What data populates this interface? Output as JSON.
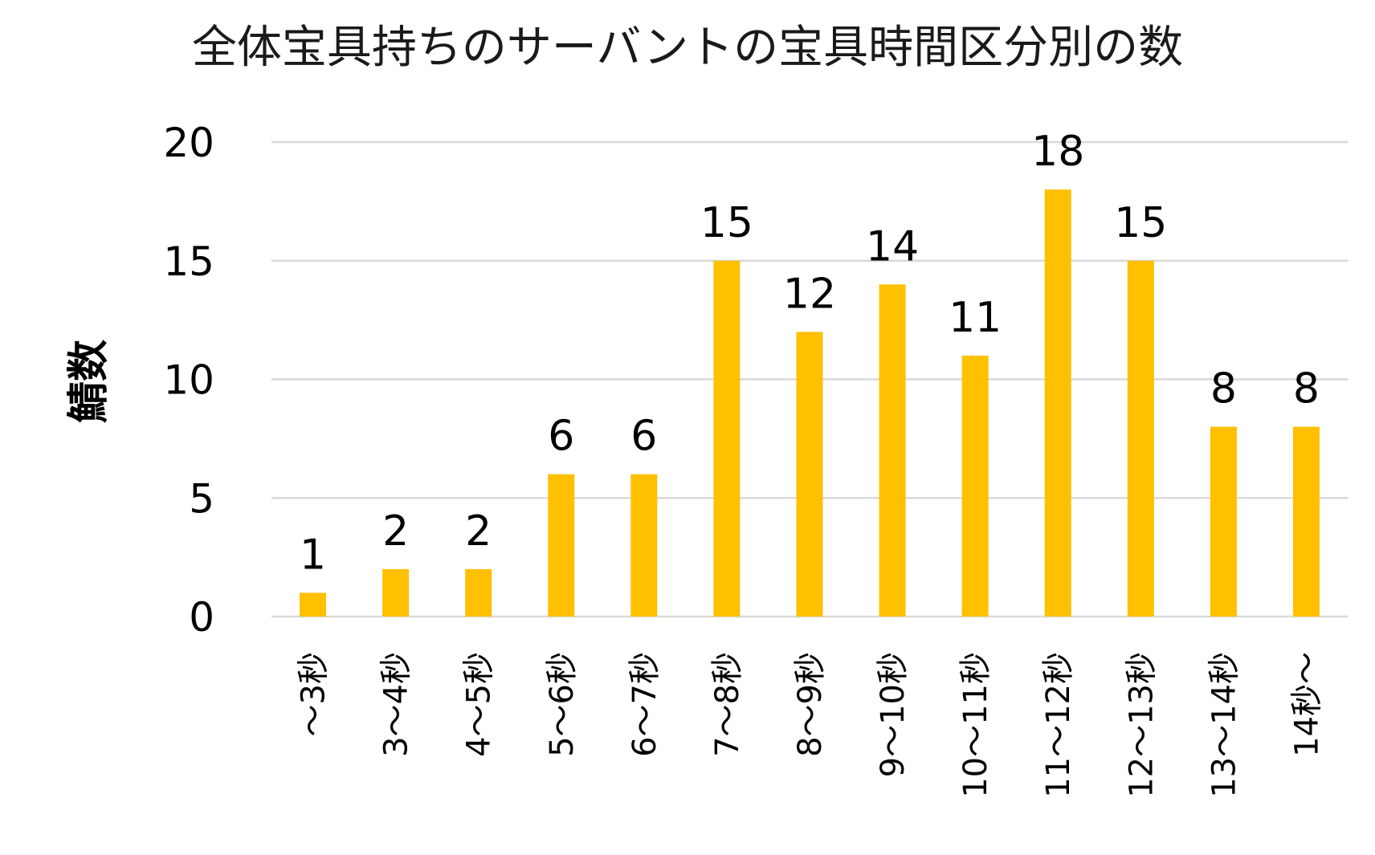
{
  "chart_data": {
    "type": "bar",
    "title": "全体宝具持ちのサーバントの宝具時間区分別の数",
    "xlabel": "",
    "ylabel": "鯖数",
    "ylim": [
      0,
      20
    ],
    "yticks": [
      0,
      5,
      10,
      15,
      20
    ],
    "grid": true,
    "legend": "none",
    "bar_color": "#FFC000",
    "categories": [
      "～3秒",
      "3～4秒",
      "4～5秒",
      "5～6秒",
      "6～7秒",
      "7～8秒",
      "8～9秒",
      "9～10秒",
      "10～11秒",
      "11～12秒",
      "12～13秒",
      "13～14秒",
      "14秒～"
    ],
    "values": [
      1,
      2,
      2,
      6,
      6,
      15,
      12,
      14,
      11,
      18,
      15,
      8,
      8
    ],
    "data_labels": [
      "1",
      "2",
      "2",
      "6",
      "6",
      "15",
      "12",
      "14",
      "11",
      "18",
      "15",
      "8",
      "8"
    ]
  }
}
